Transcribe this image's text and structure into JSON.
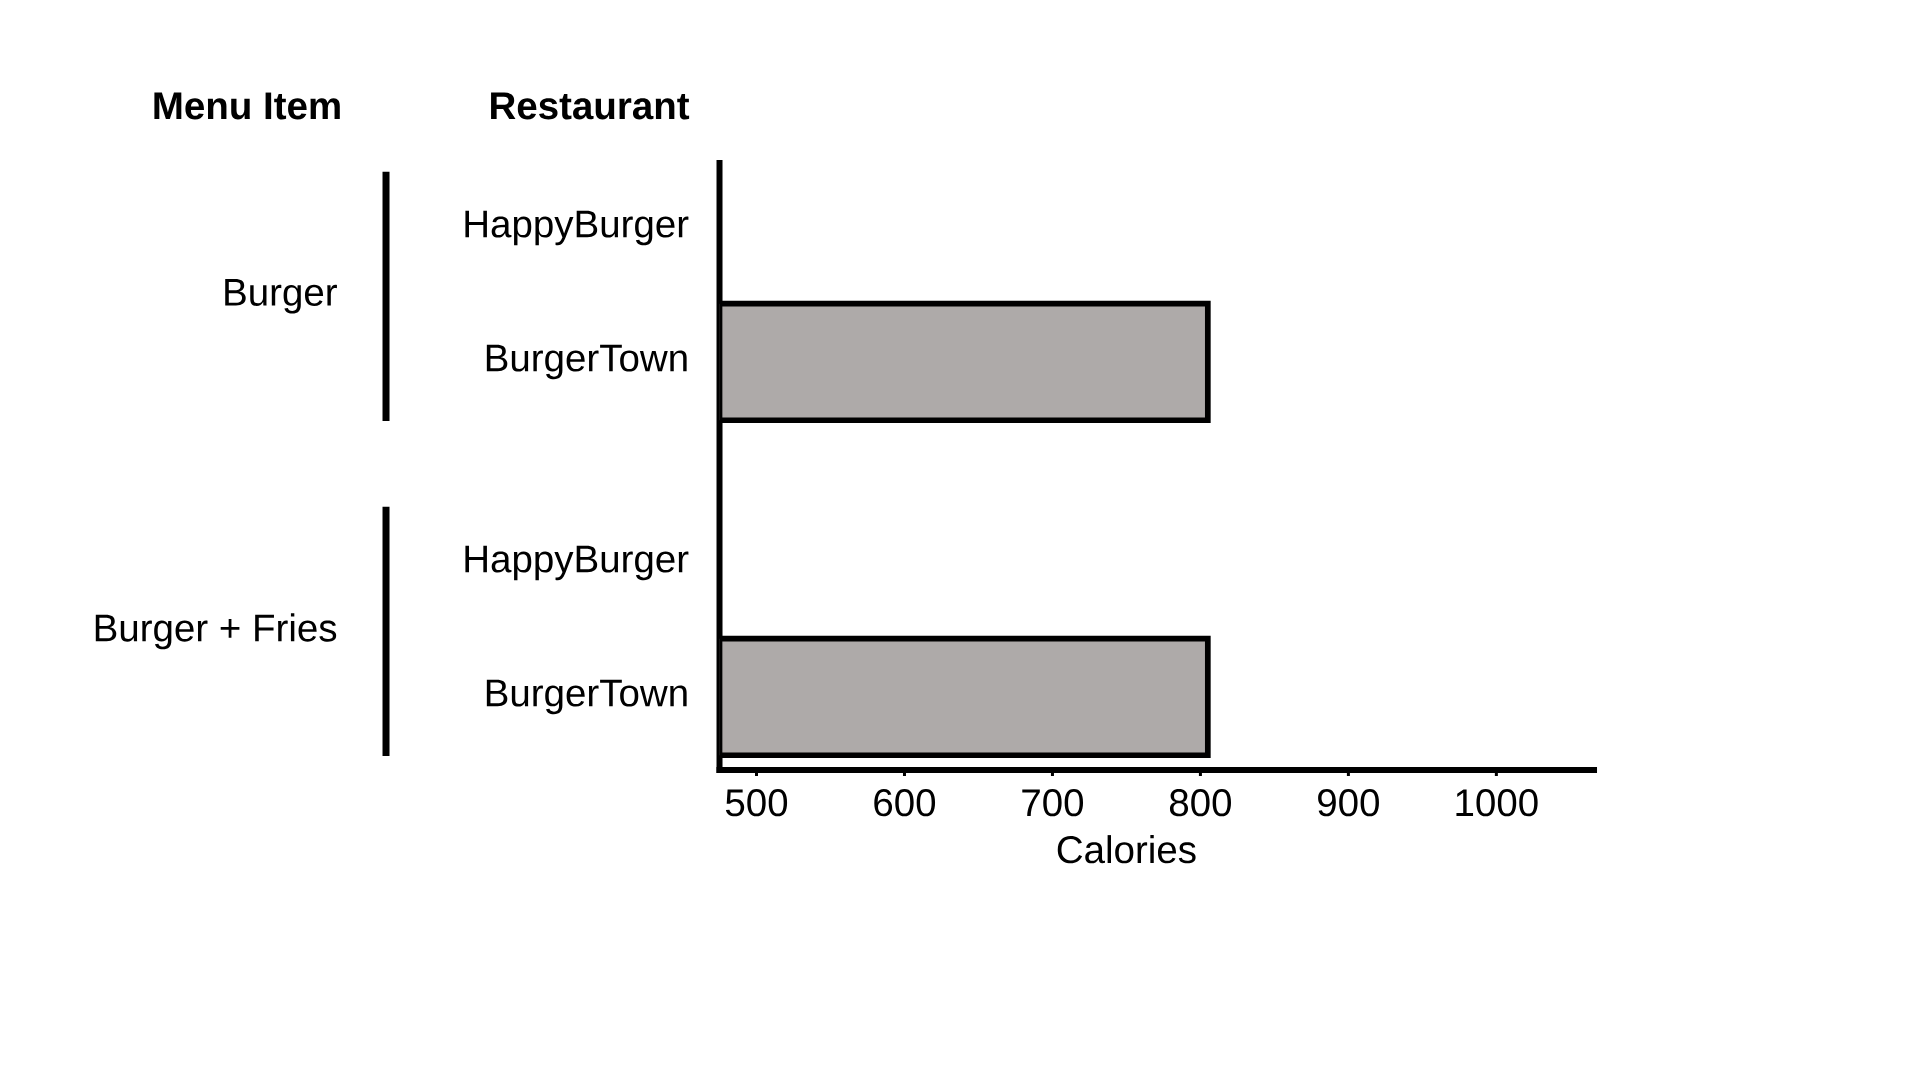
{
  "chart_data": {
    "type": "bar",
    "orientation": "horizontal",
    "categories": [
      "HappyBurger",
      "BurgerTown",
      "HappyBurger",
      "BurgerTown"
    ],
    "values": [
      null,
      805,
      null,
      805
    ],
    "color": "#aeaaa9",
    "xlabel": "Calories",
    "ylabel": "Restaurant",
    "annotations": [
      "Menu Item",
      "Burger",
      "Burger + Fries"
    ],
    "xlim": [
      475,
      1066
    ],
    "xticks": [
      500,
      600,
      700,
      800,
      900,
      1000
    ]
  }
}
